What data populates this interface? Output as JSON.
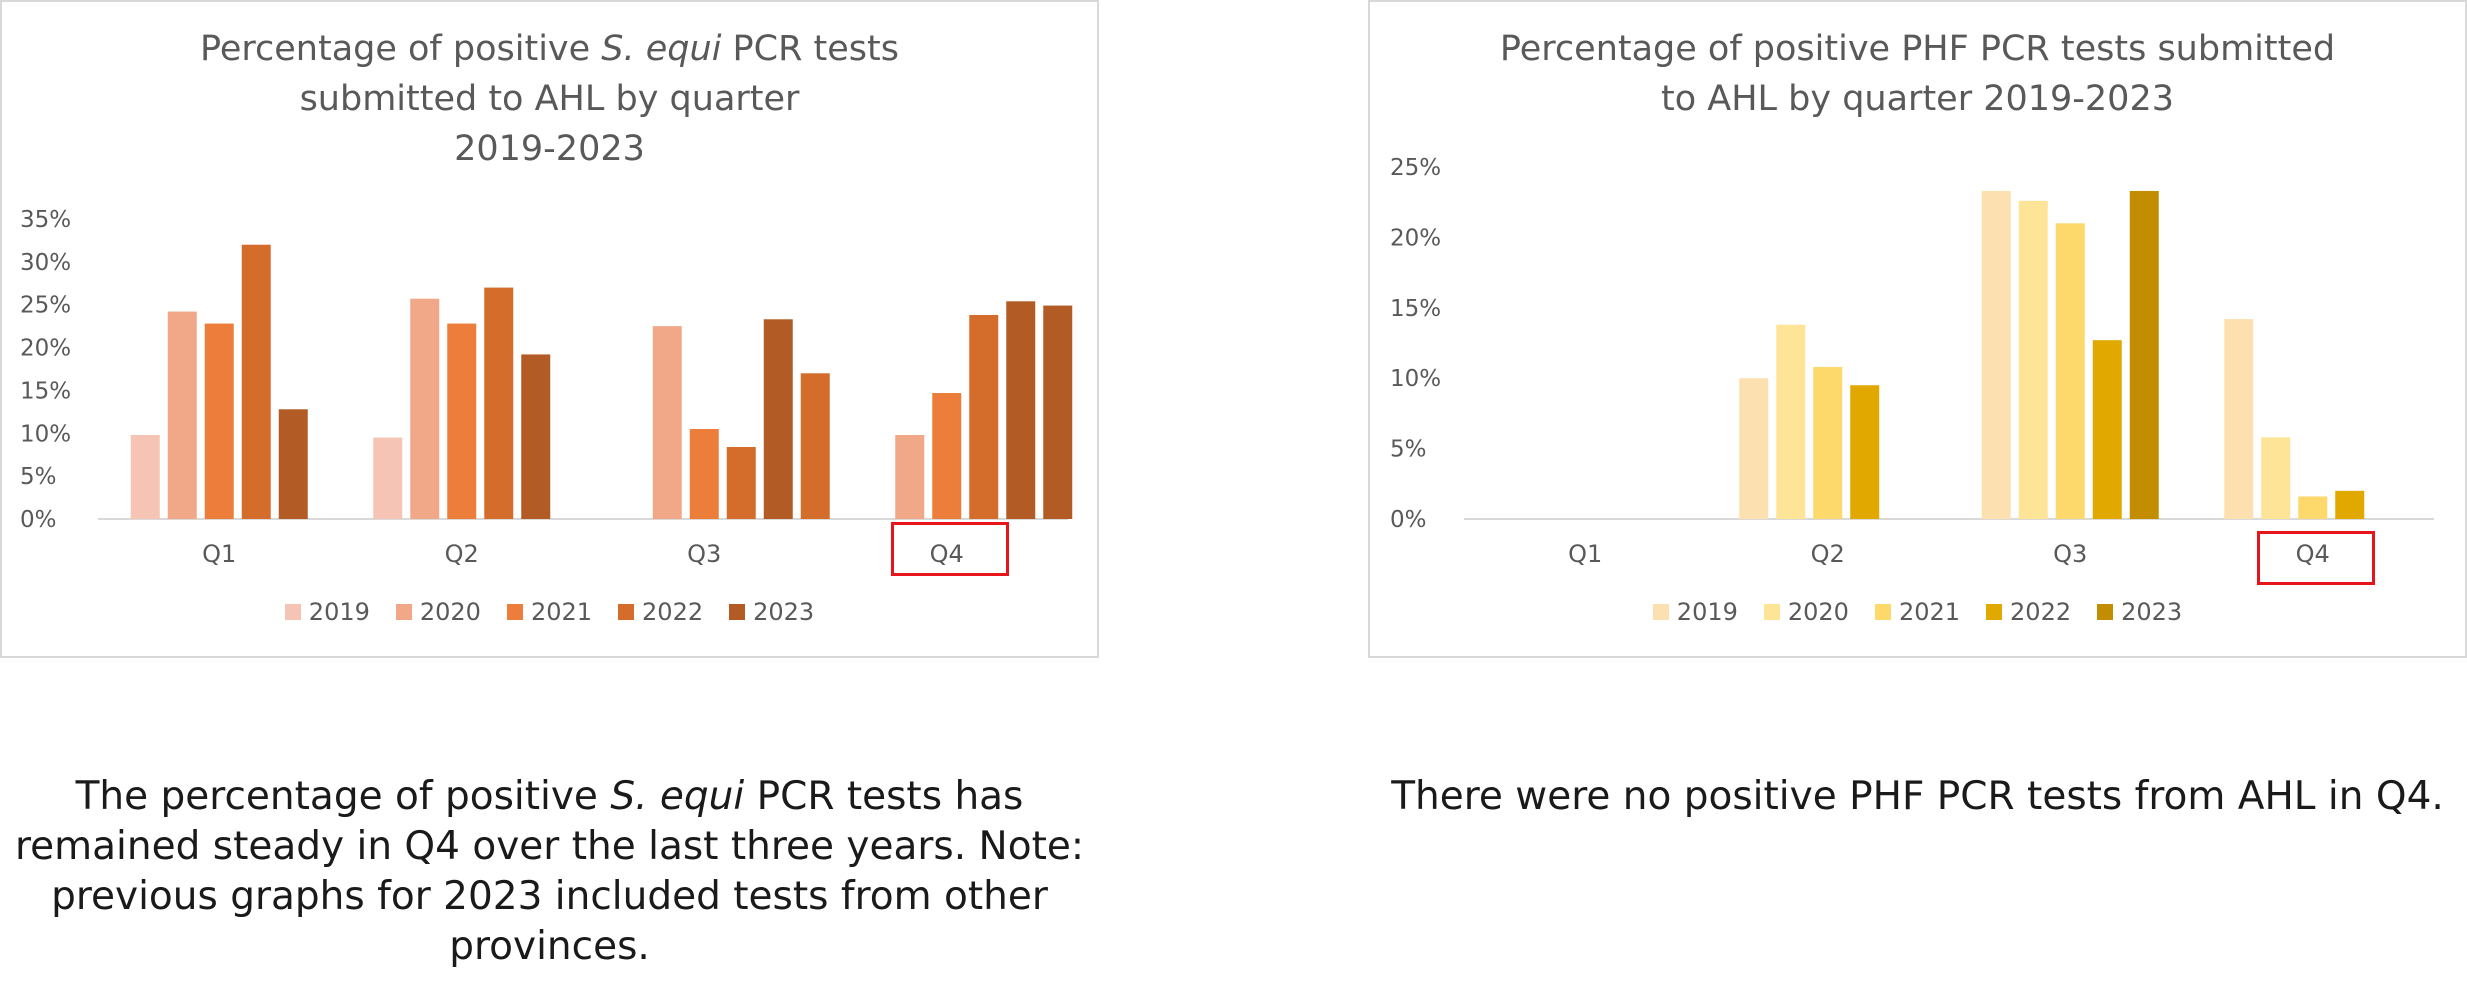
{
  "chart_data": [
    {
      "type": "bar",
      "title_pre": "Percentage of positive ",
      "title_italic": "S. equi",
      "title_mid": " PCR tests",
      "title_line2": "submitted to AHL by quarter",
      "title_line3": "2019-2023",
      "categories": [
        "Q1",
        "Q2",
        "Q3",
        "Q4"
      ],
      "y_ticks": [
        "0%",
        "5%",
        "10%",
        "15%",
        "20%",
        "25%",
        "30%",
        "35%"
      ],
      "ylim": [
        0,
        35
      ],
      "legend_position": "bottom",
      "highlighted_category": "Q4",
      "series": [
        {
          "name": "2019",
          "color": "#f6c4b4",
          "values": [
            9.8,
            9.5,
            null,
            null
          ]
        },
        {
          "name": "2020",
          "color": "#f0a889",
          "values": [
            24.2,
            25.7,
            22.5,
            9.8
          ]
        },
        {
          "name": "2021",
          "color": "#ec7d3a",
          "values": [
            22.8,
            22.8,
            10.5,
            14.7
          ]
        },
        {
          "name": "2022",
          "color": "#d46c2c",
          "values": [
            32.0,
            27.0,
            8.4,
            23.8
          ]
        },
        {
          "name": "2023",
          "color": "#b35b25",
          "values": [
            12.8,
            19.2,
            23.3,
            25.4
          ]
        }
      ],
      "extra_bars": [
        {
          "category": "Q3",
          "slot": 5,
          "value": 17.0,
          "color": "#d46c2c"
        },
        {
          "category": "Q4",
          "slot": 5,
          "value": 24.9,
          "color": "#b35b25"
        }
      ]
    },
    {
      "type": "bar",
      "title_line1": "Percentage of positive PHF PCR tests submitted",
      "title_line2": "to AHL by quarter 2019-2023",
      "categories": [
        "Q1",
        "Q2",
        "Q3",
        "Q4"
      ],
      "y_ticks": [
        "0%",
        "5%",
        "10%",
        "15%",
        "20%",
        "25%"
      ],
      "ylim": [
        0,
        25
      ],
      "legend_position": "bottom",
      "highlighted_category": "Q4",
      "series": [
        {
          "name": "2019",
          "color": "#fde0b0",
          "values": [
            null,
            10.0,
            23.3,
            14.2
          ]
        },
        {
          "name": "2020",
          "color": "#fee497",
          "values": [
            null,
            13.8,
            22.6,
            5.8
          ]
        },
        {
          "name": "2021",
          "color": "#fdd86a",
          "values": [
            null,
            10.8,
            21.0,
            1.6
          ]
        },
        {
          "name": "2022",
          "color": "#e1a800",
          "values": [
            null,
            9.5,
            12.7,
            2.0
          ]
        },
        {
          "name": "2023",
          "color": "#c28d00",
          "values": [
            null,
            null,
            23.3,
            null
          ]
        }
      ]
    }
  ],
  "captions": {
    "left_pre": "The percentage of positive ",
    "left_italic": "S. equi",
    "left_post": " PCR tests has remained steady in Q4 over the last three years. Note: previous graphs for 2023 included tests from other provinces.",
    "right": "There were no positive PHF PCR tests from AHL in Q4."
  }
}
